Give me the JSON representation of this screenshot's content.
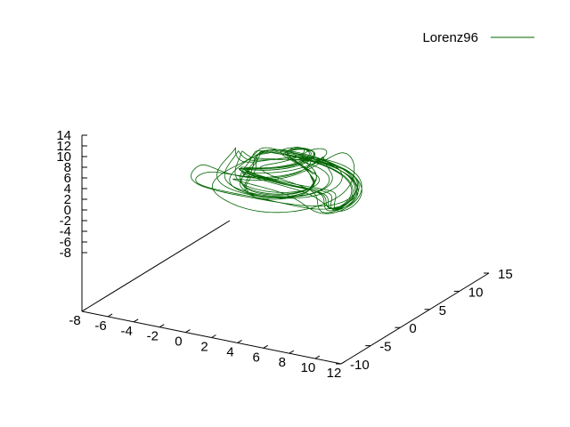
{
  "chart_data": {
    "type": "line",
    "projection": "3d",
    "title": "",
    "xlabel": "",
    "ylabel": "",
    "zlabel": "",
    "xlim": [
      -8,
      12
    ],
    "ylim": [
      -10,
      15
    ],
    "zlim": [
      -8,
      14
    ],
    "x_ticks": [
      "-8",
      "-6",
      "-4",
      "-2",
      "0",
      "2",
      "4",
      "6",
      "8",
      "10",
      "12"
    ],
    "y_ticks": [
      "-10",
      "-5",
      "0",
      "5",
      "10",
      "15"
    ],
    "z_ticks": [
      "-8",
      "-6",
      "-4",
      "-2",
      "0",
      "2",
      "4",
      "6",
      "8",
      "10",
      "12",
      "14"
    ],
    "grid": false,
    "legend_position": "top-right",
    "series": [
      {
        "name": "Lorenz96",
        "color": "#006400",
        "description_note_omitted": true
      }
    ]
  }
}
